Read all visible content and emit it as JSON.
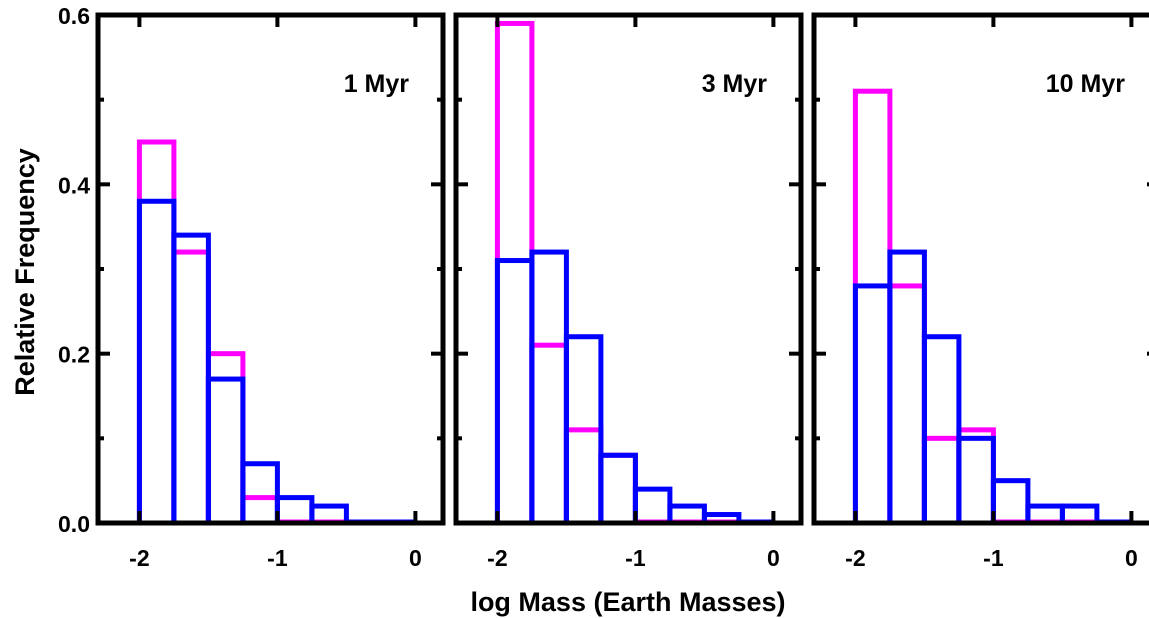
{
  "chart_data": [
    {
      "type": "histogram",
      "panel_label": "1 Myr",
      "bin_width": 0.25,
      "bin_starts": [
        -2.0,
        -1.75,
        -1.5,
        -1.25,
        -1.0,
        -0.75,
        -0.5,
        -0.25
      ],
      "series": [
        {
          "color": "#ff00ff",
          "values": [
            0.45,
            0.32,
            0.2,
            0.03,
            0.0,
            0.0,
            0.0,
            0.0
          ]
        },
        {
          "color": "#0000ff",
          "values": [
            0.38,
            0.34,
            0.17,
            0.07,
            0.03,
            0.02,
            0.0,
            0.0
          ]
        }
      ]
    },
    {
      "type": "histogram",
      "panel_label": "3 Myr",
      "bin_width": 0.25,
      "bin_starts": [
        -2.0,
        -1.75,
        -1.5,
        -1.25,
        -1.0,
        -0.75,
        -0.5,
        -0.25
      ],
      "series": [
        {
          "color": "#ff00ff",
          "values": [
            0.59,
            0.21,
            0.11,
            0.08,
            0.0,
            0.0,
            0.0,
            0.0
          ]
        },
        {
          "color": "#0000ff",
          "values": [
            0.31,
            0.32,
            0.22,
            0.08,
            0.04,
            0.02,
            0.01,
            0.0
          ]
        }
      ]
    },
    {
      "type": "histogram",
      "panel_label": "10 Myr",
      "bin_width": 0.25,
      "bin_starts": [
        -2.0,
        -1.75,
        -1.5,
        -1.25,
        -1.0,
        -0.75,
        -0.5,
        -0.25
      ],
      "series": [
        {
          "color": "#ff00ff",
          "values": [
            0.51,
            0.28,
            0.1,
            0.11,
            0.0,
            0.0,
            0.0,
            0.0
          ]
        },
        {
          "color": "#0000ff",
          "values": [
            0.28,
            0.32,
            0.22,
            0.1,
            0.05,
            0.02,
            0.02,
            0.0
          ]
        }
      ]
    }
  ],
  "axes": {
    "xlabel": "log Mass (Earth Masses)",
    "ylabel": "Relative Frequency",
    "xlim": [
      -2.3,
      0.2
    ],
    "ylim": [
      0.0,
      0.6
    ],
    "x_ticks": [
      -2,
      -1,
      0
    ],
    "x_tick_labels": [
      "-2",
      "-1",
      "0"
    ],
    "y_ticks": [
      0.0,
      0.2,
      0.4,
      0.6
    ],
    "y_tick_labels": [
      "0.0",
      "0.2",
      "0.4",
      "0.6"
    ],
    "y_minor_ticks": [
      0.1,
      0.3,
      0.5
    ]
  }
}
